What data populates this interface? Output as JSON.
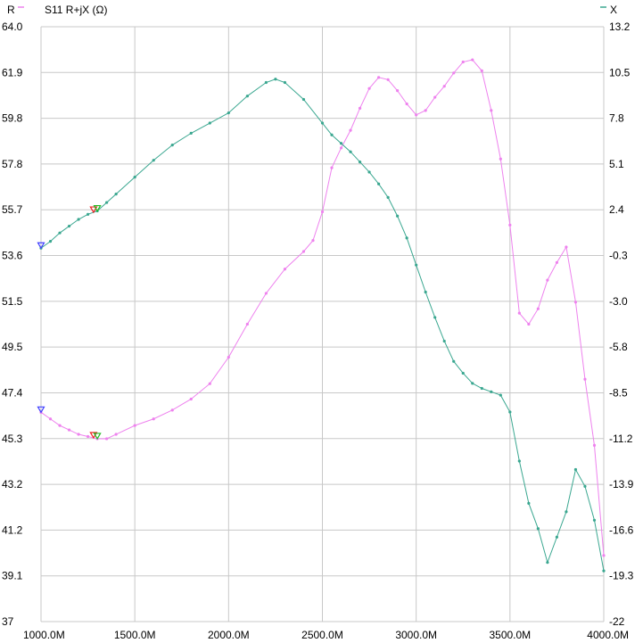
{
  "chart_data": {
    "type": "line",
    "title": "S11 R+jX (Ω)",
    "x_unit_suffix": "M",
    "x_ticks": [
      1000,
      1500,
      2000,
      2500,
      3000,
      3500,
      4000
    ],
    "xlim": [
      1000,
      4000
    ],
    "left_axis": {
      "label": "R",
      "ticks": [
        "64.0",
        "61.9",
        "59.8",
        "57.8",
        "55.7",
        "53.6",
        "51.5",
        "49.5",
        "47.4",
        "45.3",
        "43.2",
        "41.2",
        "39.1",
        "37"
      ],
      "ylim": [
        37,
        64
      ]
    },
    "right_axis": {
      "label": "X",
      "ticks": [
        "13.2",
        "10.5",
        "7.8",
        "5.1",
        "2.4",
        "-0.3",
        "-3.0",
        "-5.8",
        "-8.5",
        "-11.2",
        "-13.9",
        "-16.6",
        "-19.3",
        "-22"
      ],
      "ylim": [
        -22,
        13.2
      ]
    },
    "colors": {
      "R": "#ee82ee",
      "X": "#3aa790",
      "grid": "#c8c8c8"
    },
    "series": [
      {
        "name": "R",
        "axis": "left",
        "color": "#ee82ee",
        "x": [
          1000,
          1050,
          1100,
          1150,
          1200,
          1250,
          1300,
          1350,
          1400,
          1500,
          1600,
          1700,
          1800,
          1900,
          2000,
          2100,
          2200,
          2300,
          2400,
          2450,
          2500,
          2550,
          2600,
          2650,
          2700,
          2750,
          2800,
          2850,
          2900,
          2950,
          3000,
          3050,
          3100,
          3150,
          3200,
          3250,
          3300,
          3350,
          3400,
          3450,
          3500,
          3550,
          3600,
          3650,
          3700,
          3750,
          3800,
          3850,
          3900,
          3950,
          4000
        ],
        "y": [
          46.5,
          46.2,
          45.9,
          45.7,
          45.5,
          45.4,
          45.3,
          45.3,
          45.5,
          45.9,
          46.2,
          46.6,
          47.1,
          47.8,
          49.0,
          50.5,
          51.9,
          53.0,
          53.8,
          54.3,
          55.6,
          57.6,
          58.5,
          59.3,
          60.3,
          61.2,
          61.7,
          61.6,
          61.1,
          60.5,
          60.0,
          60.2,
          60.8,
          61.3,
          61.9,
          62.4,
          62.5,
          62.0,
          60.2,
          58.0,
          55.0,
          51.0,
          50.5,
          51.2,
          52.5,
          53.3,
          54.0,
          51.5,
          48.0,
          45.0,
          40.0
        ]
      },
      {
        "name": "X",
        "axis": "right",
        "color": "#3aa790",
        "x": [
          1000,
          1050,
          1100,
          1150,
          1200,
          1250,
          1300,
          1350,
          1400,
          1500,
          1600,
          1700,
          1800,
          1900,
          2000,
          2100,
          2200,
          2250,
          2300,
          2400,
          2500,
          2550,
          2600,
          2650,
          2700,
          2750,
          2800,
          2850,
          2900,
          2950,
          3000,
          3050,
          3100,
          3150,
          3200,
          3250,
          3300,
          3350,
          3400,
          3450,
          3500,
          3550,
          3600,
          3650,
          3700,
          3750,
          3800,
          3850,
          3900,
          3950,
          4000
        ],
        "y": [
          0.1,
          0.5,
          1.0,
          1.4,
          1.8,
          2.1,
          2.3,
          2.8,
          3.3,
          4.3,
          5.3,
          6.2,
          6.9,
          7.5,
          8.1,
          9.1,
          9.9,
          10.1,
          9.9,
          8.9,
          7.5,
          6.8,
          6.3,
          5.8,
          5.2,
          4.6,
          3.9,
          3.1,
          2.0,
          0.7,
          -0.9,
          -2.5,
          -4.0,
          -5.4,
          -6.6,
          -7.3,
          -7.9,
          -8.2,
          -8.4,
          -8.6,
          -9.6,
          -12.5,
          -15.0,
          -16.5,
          -18.5,
          -17.0,
          -15.5,
          -13.0,
          -14.0,
          -16.0,
          -19.0
        ]
      }
    ],
    "markers": [
      {
        "x": 1000,
        "series": "R",
        "color": "#4040ff"
      },
      {
        "x": 1000,
        "series": "X",
        "color": "#4040ff"
      },
      {
        "x": 1280,
        "series": "R",
        "color": "#ee2222"
      },
      {
        "x": 1280,
        "series": "X",
        "color": "#ee2222"
      },
      {
        "x": 1300,
        "series": "R",
        "color": "#22bb22"
      },
      {
        "x": 1300,
        "series": "X",
        "color": "#22bb22"
      }
    ],
    "grid": true,
    "legend": "top"
  }
}
